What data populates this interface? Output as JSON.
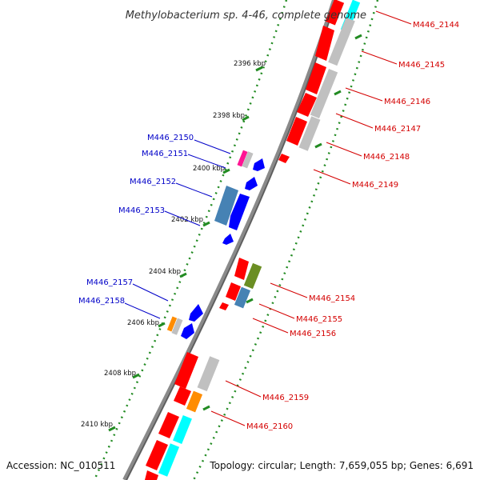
{
  "title": "Methylobacterium sp. 4-46, complete genome",
  "accession_text": "Accession: NC_010511",
  "topology_text": "Topology: circular; Length: 7,659,055 bp; Genes: 6,691",
  "colors": {
    "forward_label": "#d40000",
    "reverse_label": "#0000c8",
    "backbone_outer": "#8a8a8a",
    "backbone_inner": "#5a5a5a",
    "tick": "#228b22"
  },
  "ticks": [
    {
      "kbp": 2396,
      "label": "2396 kbp"
    },
    {
      "kbp": 2398,
      "label": "2398 kbp"
    },
    {
      "kbp": 2400,
      "label": "2400 kbp"
    },
    {
      "kbp": 2402,
      "label": "2402 kbp"
    },
    {
      "kbp": 2404,
      "label": "2404 kbp"
    },
    {
      "kbp": 2406,
      "label": "2406 kbp"
    },
    {
      "kbp": 2408,
      "label": "2408 kbp"
    },
    {
      "kbp": 2410,
      "label": "2410 kbp"
    }
  ],
  "genes": [
    {
      "label": "M446_2144",
      "strand": "+",
      "color": "#ff0000"
    },
    {
      "label": "M446_2145",
      "strand": "+",
      "color": "#ff0000"
    },
    {
      "label": "M446_2146",
      "strand": "+",
      "color": "#ff0000"
    },
    {
      "label": "M446_2147",
      "strand": "+",
      "color": "#ff0000"
    },
    {
      "label": "M446_2148",
      "strand": "+",
      "color": "#ff0000"
    },
    {
      "label": "M446_2149",
      "strand": "+",
      "color": "#ff0000"
    },
    {
      "label": "M446_2150",
      "strand": "-",
      "color": "#ff1493"
    },
    {
      "label": "M446_2151",
      "strand": "-",
      "color": "#0000ff"
    },
    {
      "label": "M446_2152",
      "strand": "-",
      "color": "#4682b4"
    },
    {
      "label": "M446_2153",
      "strand": "-",
      "color": "#0000ff"
    },
    {
      "label": "M446_2154",
      "strand": "+",
      "color": "#ff0000"
    },
    {
      "label": "M446_2155",
      "strand": "+",
      "color": "#ff0000"
    },
    {
      "label": "M446_2156",
      "strand": "+",
      "color": "#ff0000"
    },
    {
      "label": "M446_2157",
      "strand": "-",
      "color": "#ff8c00"
    },
    {
      "label": "M446_2158",
      "strand": "-",
      "color": "#0000ff"
    },
    {
      "label": "M446_2159",
      "strand": "+",
      "color": "#ff0000"
    },
    {
      "label": "M446_2160",
      "strand": "+",
      "color": "#ff0000"
    }
  ]
}
